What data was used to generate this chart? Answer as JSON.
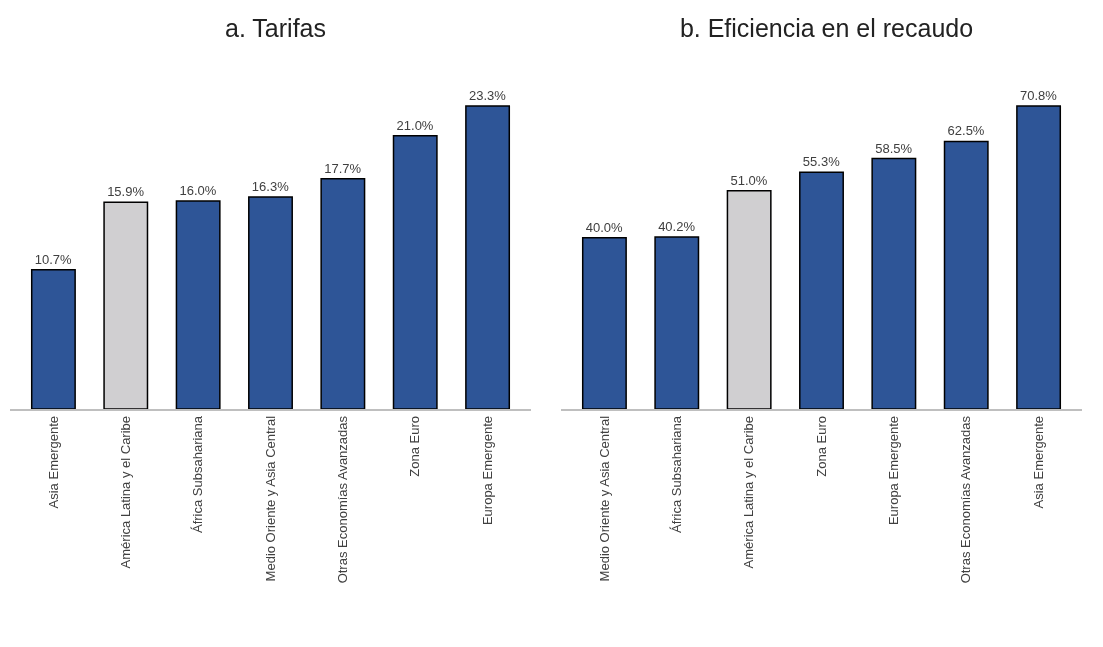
{
  "chart_data": [
    {
      "type": "bar",
      "title": "a. Tarifas",
      "categories": [
        "Asia Emergente",
        "América Latina y el Caribe",
        "África Subsahariana",
        "Medio Oriente y Asia Central",
        "Otras Economías Avanzadas",
        "Zona Euro",
        "Europa Emergente"
      ],
      "values": [
        10.7,
        15.9,
        16.0,
        16.3,
        17.7,
        21.0,
        23.3
      ],
      "value_labels": [
        "10.7%",
        "15.9%",
        "16.0%",
        "16.3%",
        "17.7%",
        "21.0%",
        "23.3%"
      ],
      "colors": [
        "#2e5597",
        "#d0cfd1",
        "#2e5597",
        "#2e5597",
        "#2e5597",
        "#2e5597",
        "#2e5597"
      ],
      "grid": false,
      "legend": false
    },
    {
      "type": "bar",
      "title": "b. Eficiencia en el recaudo",
      "categories": [
        "Medio Oriente y Asia Central",
        "África Subsahariana",
        "América Latina y el Caribe",
        "Zona Euro",
        "Europa Emergente",
        "Otras Economías Avanzadas",
        "Asia Emergente"
      ],
      "values": [
        40.0,
        40.2,
        51.0,
        55.3,
        58.5,
        62.5,
        70.8
      ],
      "value_labels": [
        "40.0%",
        "40.2%",
        "51.0%",
        "55.3%",
        "58.5%",
        "62.5%",
        "70.8%"
      ],
      "colors": [
        "#2e5597",
        "#2e5597",
        "#d0cfd1",
        "#2e5597",
        "#2e5597",
        "#2e5597",
        "#2e5597"
      ],
      "grid": false,
      "legend": false
    }
  ]
}
